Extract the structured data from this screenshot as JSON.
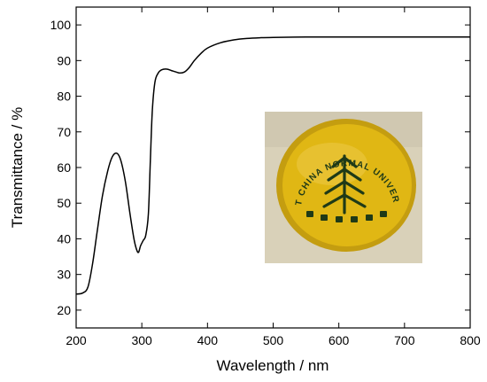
{
  "chart_data": {
    "type": "line",
    "xlabel": "Wavelength / nm",
    "ylabel": "Transmittance / %",
    "xlim": [
      200,
      800
    ],
    "ylim": [
      15,
      105
    ],
    "xticks": [
      200,
      300,
      400,
      500,
      600,
      700,
      800
    ],
    "yticks": [
      20,
      30,
      40,
      50,
      60,
      70,
      80,
      90,
      100
    ],
    "grid": false,
    "series": [
      {
        "color": "#000000",
        "x": [
          200,
          210,
          218,
          225,
          232,
          240,
          248,
          255,
          262,
          268,
          275,
          282,
          288,
          292,
          295,
          298,
          302,
          306,
          310,
          313,
          316,
          320,
          325,
          330,
          338,
          345,
          352,
          358,
          365,
          372,
          380,
          390,
          400,
          420,
          440,
          460,
          480,
          500,
          550,
          600,
          650,
          700,
          750,
          800
        ],
        "y": [
          24.5,
          24.8,
          26.5,
          33,
          42,
          52,
          59,
          63,
          64,
          62,
          56,
          47,
          40,
          37,
          36.2,
          38,
          39.5,
          41,
          47,
          62,
          76,
          84,
          86.5,
          87.4,
          87.6,
          87.2,
          86.8,
          86.5,
          86.8,
          88,
          90,
          92,
          93.5,
          95,
          95.8,
          96.2,
          96.4,
          96.5,
          96.6,
          96.6,
          96.6,
          96.6,
          96.6,
          96.6
        ]
      }
    ]
  },
  "inset_photo": {
    "logo_text": "EAST CHINA NORMAL UNIVERSITY",
    "background_color": "#d9d1b9",
    "disc_color": "#e0b714"
  }
}
